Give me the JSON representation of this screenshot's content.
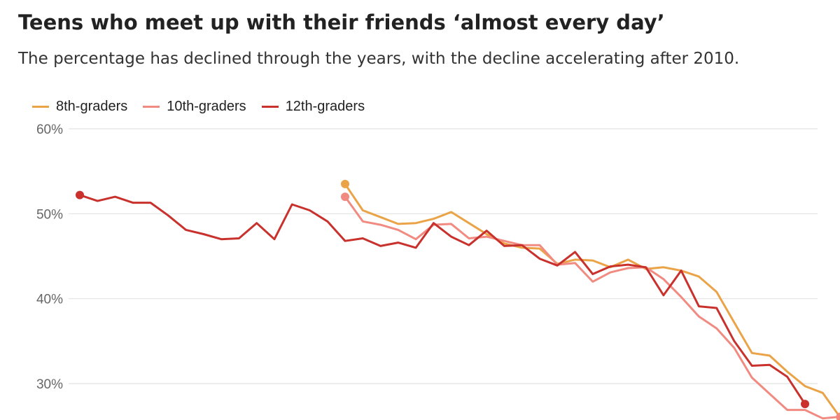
{
  "title": "Teens who meet up with their friends ‘almost every day’",
  "subtitle": "The percentage has declined through the years, with the decline accelerating after 2010.",
  "chart_data": {
    "type": "line",
    "title": "Teens who meet up with their friends ‘almost every day’",
    "subtitle": "The percentage has declined through the years, with the decline accelerating after 2010.",
    "xlabel": "",
    "ylabel": "",
    "x_range": [
      1976,
      2017
    ],
    "ylim": [
      26,
      60
    ],
    "y_ticks": [
      60,
      50,
      40,
      30
    ],
    "y_tick_labels": [
      "60%",
      "50%",
      "40%",
      "30%"
    ],
    "grid": true,
    "legend_position": "top-left",
    "series": [
      {
        "name": "8th-graders",
        "color": "#eba347",
        "start_year": 1991,
        "values": [
          53.5,
          50.4,
          49.6,
          48.8,
          48.9,
          49.4,
          50.2,
          48.9,
          47.6,
          46.5,
          46.0,
          45.9,
          44.1,
          44.6,
          44.5,
          43.7,
          44.6,
          43.5,
          43.7,
          43.3,
          42.6,
          40.8,
          37.2,
          33.6,
          33.3,
          31.4,
          29.7,
          28.9,
          26.0
        ]
      },
      {
        "name": "10th-graders",
        "color": "#f18a80",
        "start_year": 1991,
        "values": [
          52.0,
          49.1,
          48.7,
          48.1,
          47.0,
          48.7,
          48.8,
          47.1,
          47.3,
          46.8,
          46.3,
          46.3,
          44.0,
          44.2,
          42.0,
          43.1,
          43.6,
          43.7,
          42.3,
          40.2,
          37.9,
          36.5,
          34.2,
          30.7,
          28.8,
          26.9,
          26.9,
          25.9,
          26.1
        ]
      },
      {
        "name": "12th-graders",
        "color": "#c8312c",
        "start_year": 1976,
        "values": [
          52.2,
          51.5,
          52.0,
          51.3,
          51.3,
          49.8,
          48.1,
          47.6,
          47.0,
          47.1,
          48.9,
          47.0,
          51.1,
          50.4,
          49.1,
          46.8,
          47.1,
          46.2,
          46.6,
          46.0,
          48.9,
          47.3,
          46.3,
          48.0,
          46.2,
          46.3,
          44.7,
          43.9,
          45.5,
          42.9,
          43.8,
          44.0,
          43.7,
          40.4,
          43.3,
          39.1,
          38.9,
          35.0,
          32.1,
          32.2,
          30.8,
          27.6
        ]
      }
    ]
  }
}
